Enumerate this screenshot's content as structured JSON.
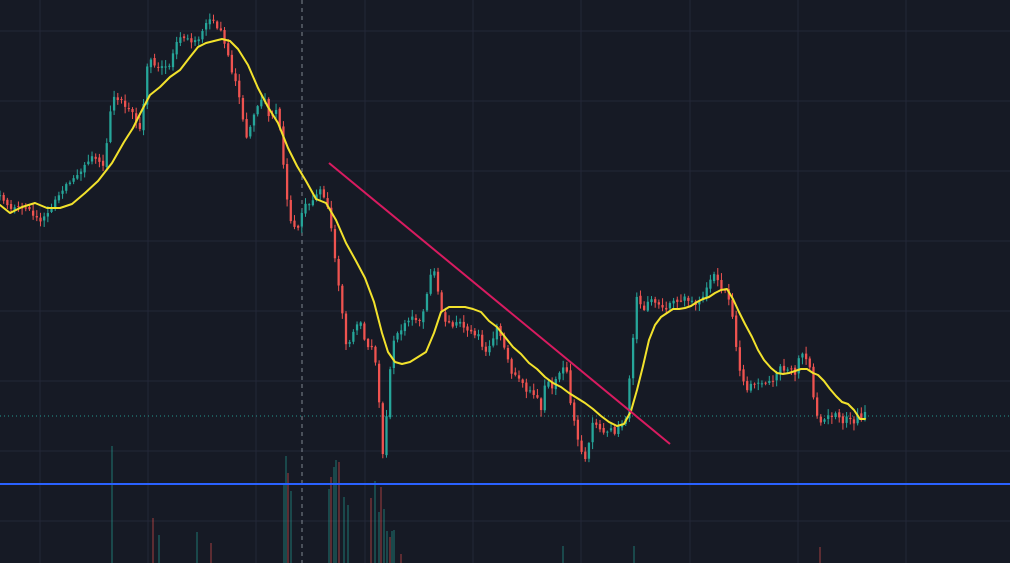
{
  "colors": {
    "background": "#161a25",
    "grid": "#232838",
    "up": "#26a69a",
    "down": "#ef5350",
    "moving_average": "#f2e22c",
    "trendline": "#d81b60",
    "support_line": "#2a62ff",
    "price_marker": "#26a69a",
    "crosshair": "#9aa0ab"
  },
  "chart_data": {
    "type": "candlestick",
    "title": "",
    "xlabel": "",
    "ylabel": "",
    "ylim": [
      0,
      563
    ],
    "y_axis_inverted": true,
    "grid": true,
    "candle_count": 236,
    "price_anchors": [
      [
        0,
        195
      ],
      [
        8,
        205
      ],
      [
        18,
        208
      ],
      [
        27,
        207
      ],
      [
        38,
        222
      ],
      [
        46,
        213
      ],
      [
        57,
        198
      ],
      [
        66,
        184
      ],
      [
        78,
        171
      ],
      [
        92,
        159
      ],
      [
        104,
        165
      ],
      [
        112,
        98
      ],
      [
        124,
        102
      ],
      [
        133,
        116
      ],
      [
        141,
        134
      ],
      [
        148,
        58
      ],
      [
        157,
        70
      ],
      [
        167,
        69
      ],
      [
        177,
        42
      ],
      [
        186,
        36
      ],
      [
        196,
        43
      ],
      [
        203,
        28
      ],
      [
        210,
        22
      ],
      [
        214,
        18
      ],
      [
        222,
        36
      ],
      [
        230,
        62
      ],
      [
        238,
        92
      ],
      [
        246,
        135
      ],
      [
        252,
        126
      ],
      [
        257,
        104
      ],
      [
        264,
        98
      ],
      [
        270,
        121
      ],
      [
        276,
        108
      ],
      [
        281,
        135
      ],
      [
        287,
        200
      ],
      [
        291,
        224
      ],
      [
        297,
        228
      ],
      [
        304,
        208
      ],
      [
        313,
        202
      ],
      [
        320,
        188
      ],
      [
        327,
        205
      ],
      [
        333,
        242
      ],
      [
        339,
        286
      ],
      [
        347,
        352
      ],
      [
        354,
        326
      ],
      [
        360,
        322
      ],
      [
        366,
        344
      ],
      [
        374,
        345
      ],
      [
        380,
        408
      ],
      [
        384,
        474
      ],
      [
        388,
        382
      ],
      [
        394,
        339
      ],
      [
        401,
        328
      ],
      [
        408,
        325
      ],
      [
        414,
        314
      ],
      [
        421,
        326
      ],
      [
        427,
        295
      ],
      [
        433,
        262
      ],
      [
        438,
        291
      ],
      [
        444,
        322
      ],
      [
        452,
        324
      ],
      [
        458,
        320
      ],
      [
        465,
        333
      ],
      [
        471,
        328
      ],
      [
        478,
        336
      ],
      [
        485,
        352
      ],
      [
        491,
        340
      ],
      [
        497,
        327
      ],
      [
        503,
        340
      ],
      [
        509,
        366
      ],
      [
        515,
        378
      ],
      [
        522,
        385
      ],
      [
        528,
        394
      ],
      [
        535,
        392
      ],
      [
        541,
        407
      ],
      [
        546,
        381
      ],
      [
        553,
        388
      ],
      [
        560,
        370
      ],
      [
        566,
        366
      ],
      [
        570,
        400
      ],
      [
        575,
        426
      ],
      [
        581,
        448
      ],
      [
        586,
        462
      ],
      [
        592,
        425
      ],
      [
        598,
        422
      ],
      [
        604,
        434
      ],
      [
        609,
        428
      ],
      [
        615,
        434
      ],
      [
        621,
        426
      ],
      [
        626,
        416
      ],
      [
        631,
        360
      ],
      [
        637,
        292
      ],
      [
        643,
        315
      ],
      [
        649,
        296
      ],
      [
        655,
        300
      ],
      [
        661,
        304
      ],
      [
        667,
        307
      ],
      [
        673,
        302
      ],
      [
        679,
        306
      ],
      [
        685,
        298
      ],
      [
        691,
        300
      ],
      [
        697,
        302
      ],
      [
        703,
        294
      ],
      [
        709,
        284
      ],
      [
        715,
        270
      ],
      [
        721,
        288
      ],
      [
        727,
        290
      ],
      [
        733,
        318
      ],
      [
        739,
        370
      ],
      [
        745,
        388
      ],
      [
        752,
        384
      ],
      [
        758,
        380
      ],
      [
        764,
        380
      ],
      [
        771,
        383
      ],
      [
        777,
        372
      ],
      [
        783,
        368
      ],
      [
        789,
        370
      ],
      [
        795,
        372
      ],
      [
        801,
        350
      ],
      [
        807,
        360
      ],
      [
        811,
        375
      ],
      [
        814,
        400
      ],
      [
        818,
        423
      ],
      [
        824,
        420
      ],
      [
        830,
        417
      ],
      [
        836,
        416
      ],
      [
        842,
        421
      ],
      [
        848,
        418
      ],
      [
        854,
        420
      ],
      [
        860,
        417
      ],
      [
        865,
        415
      ]
    ],
    "ma_anchors": [
      [
        0,
        205
      ],
      [
        10,
        213
      ],
      [
        22,
        207
      ],
      [
        35,
        203
      ],
      [
        47,
        208
      ],
      [
        60,
        208
      ],
      [
        72,
        204
      ],
      [
        85,
        193
      ],
      [
        98,
        181
      ],
      [
        112,
        163
      ],
      [
        124,
        142
      ],
      [
        133,
        128
      ],
      [
        141,
        112
      ],
      [
        150,
        95
      ],
      [
        160,
        87
      ],
      [
        170,
        77
      ],
      [
        180,
        70
      ],
      [
        190,
        57
      ],
      [
        198,
        47
      ],
      [
        206,
        43
      ],
      [
        214,
        41
      ],
      [
        222,
        39
      ],
      [
        230,
        41
      ],
      [
        238,
        49
      ],
      [
        248,
        65
      ],
      [
        258,
        88
      ],
      [
        268,
        107
      ],
      [
        278,
        123
      ],
      [
        288,
        148
      ],
      [
        297,
        166
      ],
      [
        306,
        181
      ],
      [
        316,
        199
      ],
      [
        326,
        203
      ],
      [
        336,
        220
      ],
      [
        346,
        243
      ],
      [
        356,
        261
      ],
      [
        365,
        278
      ],
      [
        374,
        302
      ],
      [
        382,
        333
      ],
      [
        388,
        352
      ],
      [
        395,
        362
      ],
      [
        402,
        364
      ],
      [
        410,
        362
      ],
      [
        418,
        357
      ],
      [
        426,
        352
      ],
      [
        434,
        333
      ],
      [
        441,
        312
      ],
      [
        449,
        307
      ],
      [
        457,
        307
      ],
      [
        465,
        307
      ],
      [
        473,
        309
      ],
      [
        481,
        312
      ],
      [
        489,
        321
      ],
      [
        497,
        327
      ],
      [
        505,
        337
      ],
      [
        513,
        347
      ],
      [
        521,
        354
      ],
      [
        529,
        363
      ],
      [
        537,
        369
      ],
      [
        545,
        377
      ],
      [
        553,
        383
      ],
      [
        561,
        387
      ],
      [
        569,
        393
      ],
      [
        577,
        398
      ],
      [
        585,
        403
      ],
      [
        593,
        409
      ],
      [
        601,
        416
      ],
      [
        609,
        422
      ],
      [
        617,
        426
      ],
      [
        624,
        424
      ],
      [
        631,
        411
      ],
      [
        637,
        390
      ],
      [
        643,
        366
      ],
      [
        649,
        340
      ],
      [
        655,
        325
      ],
      [
        661,
        317
      ],
      [
        667,
        313
      ],
      [
        673,
        309
      ],
      [
        679,
        309
      ],
      [
        685,
        308
      ],
      [
        691,
        306
      ],
      [
        697,
        302
      ],
      [
        703,
        299
      ],
      [
        709,
        297
      ],
      [
        715,
        293
      ],
      [
        721,
        290
      ],
      [
        727,
        289
      ],
      [
        733,
        299
      ],
      [
        739,
        312
      ],
      [
        745,
        324
      ],
      [
        752,
        337
      ],
      [
        758,
        350
      ],
      [
        764,
        360
      ],
      [
        771,
        368
      ],
      [
        777,
        373
      ],
      [
        783,
        374
      ],
      [
        789,
        373
      ],
      [
        795,
        371
      ],
      [
        801,
        369
      ],
      [
        807,
        369
      ],
      [
        813,
        373
      ],
      [
        818,
        375
      ],
      [
        824,
        381
      ],
      [
        830,
        389
      ],
      [
        836,
        396
      ],
      [
        842,
        402
      ],
      [
        848,
        404
      ],
      [
        854,
        410
      ],
      [
        860,
        419
      ],
      [
        865,
        419
      ]
    ],
    "volume_spikes": [
      [
        112,
        117
      ],
      [
        153,
        45
      ],
      [
        159,
        28
      ],
      [
        197,
        31
      ],
      [
        211,
        20
      ],
      [
        284,
        78
      ],
      [
        286,
        107
      ],
      [
        288,
        90
      ],
      [
        291,
        72
      ],
      [
        329,
        74
      ],
      [
        331,
        86
      ],
      [
        334,
        96
      ],
      [
        336,
        103
      ],
      [
        339,
        101
      ],
      [
        344,
        66
      ],
      [
        348,
        58
      ],
      [
        371,
        65
      ],
      [
        375,
        82
      ],
      [
        379,
        51
      ],
      [
        381,
        76
      ],
      [
        384,
        54
      ],
      [
        387,
        32
      ],
      [
        390,
        26
      ],
      [
        392,
        32
      ],
      [
        394,
        33
      ],
      [
        401,
        9
      ],
      [
        563,
        17
      ],
      [
        634,
        17
      ],
      [
        820,
        16
      ]
    ],
    "trendline": [
      [
        329,
        163
      ],
      [
        670,
        444
      ]
    ],
    "support_level_y": 484,
    "current_price_y": 416,
    "crosshair_x": 302,
    "grid_x": [
      40,
      148,
      256,
      365,
      473,
      581,
      690,
      798,
      906
    ],
    "grid_y": [
      31,
      101,
      171,
      241,
      311,
      381,
      451,
      521
    ]
  }
}
